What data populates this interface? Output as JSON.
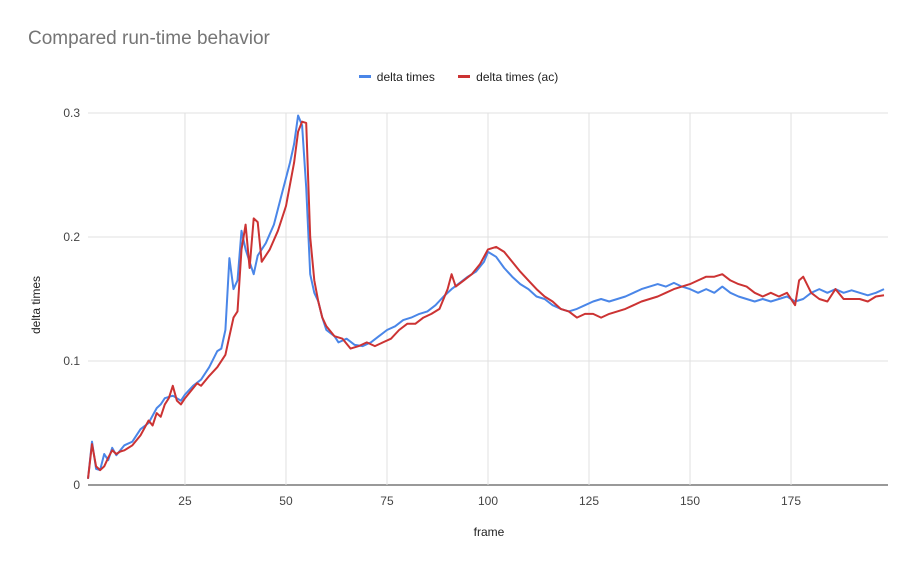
{
  "chart_data": {
    "type": "line",
    "title": "Compared run-time behavior",
    "xlabel": "frame",
    "ylabel": "delta times",
    "xlim": [
      1,
      199
    ],
    "ylim": [
      0,
      0.3
    ],
    "x_ticks": [
      25,
      50,
      75,
      100,
      125,
      150,
      175
    ],
    "y_ticks": [
      0,
      0.1,
      0.2,
      0.3
    ],
    "x_tick_labels": [
      "25",
      "50",
      "75",
      "100",
      "125",
      "150",
      "175"
    ],
    "y_tick_labels": [
      "0",
      "0.1",
      "0.2",
      "0.3"
    ],
    "grid": true,
    "legend_position": "top",
    "series": [
      {
        "name": "delta times",
        "color": "#4a86e8",
        "points": [
          [
            1,
            0.005
          ],
          [
            2,
            0.035
          ],
          [
            3,
            0.013
          ],
          [
            4,
            0.012
          ],
          [
            5,
            0.025
          ],
          [
            6,
            0.02
          ],
          [
            7,
            0.03
          ],
          [
            8,
            0.024
          ],
          [
            9,
            0.028
          ],
          [
            10,
            0.032
          ],
          [
            12,
            0.035
          ],
          [
            14,
            0.045
          ],
          [
            16,
            0.05
          ],
          [
            18,
            0.062
          ],
          [
            19,
            0.065
          ],
          [
            20,
            0.07
          ],
          [
            22,
            0.072
          ],
          [
            24,
            0.068
          ],
          [
            25,
            0.073
          ],
          [
            27,
            0.08
          ],
          [
            29,
            0.085
          ],
          [
            31,
            0.095
          ],
          [
            33,
            0.108
          ],
          [
            34,
            0.11
          ],
          [
            35,
            0.125
          ],
          [
            36,
            0.183
          ],
          [
            37,
            0.158
          ],
          [
            38,
            0.165
          ],
          [
            39,
            0.205
          ],
          [
            40,
            0.19
          ],
          [
            41,
            0.18
          ],
          [
            42,
            0.17
          ],
          [
            43,
            0.185
          ],
          [
            45,
            0.195
          ],
          [
            47,
            0.21
          ],
          [
            49,
            0.235
          ],
          [
            51,
            0.26
          ],
          [
            52,
            0.275
          ],
          [
            53,
            0.298
          ],
          [
            54,
            0.29
          ],
          [
            55,
            0.24
          ],
          [
            56,
            0.17
          ],
          [
            57,
            0.155
          ],
          [
            58,
            0.148
          ],
          [
            59,
            0.135
          ],
          [
            60,
            0.125
          ],
          [
            62,
            0.12
          ],
          [
            63,
            0.115
          ],
          [
            65,
            0.118
          ],
          [
            67,
            0.113
          ],
          [
            69,
            0.112
          ],
          [
            71,
            0.115
          ],
          [
            73,
            0.12
          ],
          [
            75,
            0.125
          ],
          [
            77,
            0.128
          ],
          [
            79,
            0.133
          ],
          [
            81,
            0.135
          ],
          [
            83,
            0.138
          ],
          [
            85,
            0.14
          ],
          [
            87,
            0.145
          ],
          [
            89,
            0.152
          ],
          [
            91,
            0.158
          ],
          [
            93,
            0.163
          ],
          [
            95,
            0.168
          ],
          [
            97,
            0.172
          ],
          [
            99,
            0.18
          ],
          [
            100,
            0.188
          ],
          [
            102,
            0.184
          ],
          [
            104,
            0.175
          ],
          [
            106,
            0.168
          ],
          [
            108,
            0.162
          ],
          [
            110,
            0.158
          ],
          [
            112,
            0.152
          ],
          [
            114,
            0.15
          ],
          [
            116,
            0.145
          ],
          [
            118,
            0.142
          ],
          [
            120,
            0.14
          ],
          [
            122,
            0.142
          ],
          [
            124,
            0.145
          ],
          [
            126,
            0.148
          ],
          [
            128,
            0.15
          ],
          [
            130,
            0.148
          ],
          [
            132,
            0.15
          ],
          [
            134,
            0.152
          ],
          [
            136,
            0.155
          ],
          [
            138,
            0.158
          ],
          [
            140,
            0.16
          ],
          [
            142,
            0.162
          ],
          [
            144,
            0.16
          ],
          [
            146,
            0.163
          ],
          [
            148,
            0.16
          ],
          [
            150,
            0.158
          ],
          [
            152,
            0.155
          ],
          [
            154,
            0.158
          ],
          [
            156,
            0.155
          ],
          [
            158,
            0.16
          ],
          [
            160,
            0.155
          ],
          [
            162,
            0.152
          ],
          [
            164,
            0.15
          ],
          [
            166,
            0.148
          ],
          [
            168,
            0.15
          ],
          [
            170,
            0.148
          ],
          [
            172,
            0.15
          ],
          [
            174,
            0.152
          ],
          [
            176,
            0.148
          ],
          [
            178,
            0.15
          ],
          [
            180,
            0.155
          ],
          [
            182,
            0.158
          ],
          [
            184,
            0.155
          ],
          [
            186,
            0.158
          ],
          [
            188,
            0.155
          ],
          [
            190,
            0.157
          ],
          [
            192,
            0.155
          ],
          [
            194,
            0.153
          ],
          [
            196,
            0.155
          ],
          [
            198,
            0.158
          ]
        ]
      },
      {
        "name": "delta times (ac)",
        "color": "#cc3333",
        "points": [
          [
            1,
            0.005
          ],
          [
            2,
            0.033
          ],
          [
            3,
            0.015
          ],
          [
            4,
            0.012
          ],
          [
            5,
            0.015
          ],
          [
            6,
            0.022
          ],
          [
            7,
            0.028
          ],
          [
            8,
            0.025
          ],
          [
            9,
            0.027
          ],
          [
            10,
            0.028
          ],
          [
            12,
            0.032
          ],
          [
            14,
            0.04
          ],
          [
            16,
            0.052
          ],
          [
            17,
            0.048
          ],
          [
            18,
            0.058
          ],
          [
            19,
            0.055
          ],
          [
            20,
            0.065
          ],
          [
            21,
            0.07
          ],
          [
            22,
            0.08
          ],
          [
            23,
            0.068
          ],
          [
            24,
            0.065
          ],
          [
            25,
            0.07
          ],
          [
            27,
            0.078
          ],
          [
            28,
            0.082
          ],
          [
            29,
            0.08
          ],
          [
            31,
            0.088
          ],
          [
            33,
            0.095
          ],
          [
            35,
            0.105
          ],
          [
            36,
            0.12
          ],
          [
            37,
            0.135
          ],
          [
            38,
            0.14
          ],
          [
            39,
            0.19
          ],
          [
            40,
            0.21
          ],
          [
            41,
            0.175
          ],
          [
            42,
            0.215
          ],
          [
            43,
            0.212
          ],
          [
            44,
            0.18
          ],
          [
            46,
            0.19
          ],
          [
            48,
            0.205
          ],
          [
            50,
            0.225
          ],
          [
            52,
            0.26
          ],
          [
            53,
            0.285
          ],
          [
            54,
            0.293
          ],
          [
            55,
            0.292
          ],
          [
            56,
            0.2
          ],
          [
            57,
            0.165
          ],
          [
            58,
            0.148
          ],
          [
            59,
            0.135
          ],
          [
            60,
            0.128
          ],
          [
            62,
            0.12
          ],
          [
            64,
            0.118
          ],
          [
            66,
            0.11
          ],
          [
            68,
            0.112
          ],
          [
            70,
            0.115
          ],
          [
            72,
            0.112
          ],
          [
            74,
            0.115
          ],
          [
            76,
            0.118
          ],
          [
            78,
            0.125
          ],
          [
            80,
            0.13
          ],
          [
            82,
            0.13
          ],
          [
            84,
            0.135
          ],
          [
            86,
            0.138
          ],
          [
            88,
            0.142
          ],
          [
            90,
            0.158
          ],
          [
            91,
            0.17
          ],
          [
            92,
            0.16
          ],
          [
            94,
            0.165
          ],
          [
            96,
            0.17
          ],
          [
            98,
            0.178
          ],
          [
            100,
            0.19
          ],
          [
            102,
            0.192
          ],
          [
            104,
            0.188
          ],
          [
            106,
            0.18
          ],
          [
            108,
            0.172
          ],
          [
            110,
            0.165
          ],
          [
            112,
            0.158
          ],
          [
            114,
            0.152
          ],
          [
            116,
            0.148
          ],
          [
            118,
            0.142
          ],
          [
            120,
            0.14
          ],
          [
            122,
            0.135
          ],
          [
            124,
            0.138
          ],
          [
            126,
            0.138
          ],
          [
            128,
            0.135
          ],
          [
            130,
            0.138
          ],
          [
            132,
            0.14
          ],
          [
            134,
            0.142
          ],
          [
            136,
            0.145
          ],
          [
            138,
            0.148
          ],
          [
            140,
            0.15
          ],
          [
            142,
            0.152
          ],
          [
            144,
            0.155
          ],
          [
            146,
            0.158
          ],
          [
            148,
            0.16
          ],
          [
            150,
            0.162
          ],
          [
            152,
            0.165
          ],
          [
            154,
            0.168
          ],
          [
            156,
            0.168
          ],
          [
            158,
            0.17
          ],
          [
            160,
            0.165
          ],
          [
            162,
            0.162
          ],
          [
            164,
            0.16
          ],
          [
            166,
            0.155
          ],
          [
            168,
            0.152
          ],
          [
            170,
            0.155
          ],
          [
            172,
            0.152
          ],
          [
            174,
            0.155
          ],
          [
            176,
            0.145
          ],
          [
            177,
            0.165
          ],
          [
            178,
            0.168
          ],
          [
            180,
            0.155
          ],
          [
            182,
            0.15
          ],
          [
            184,
            0.148
          ],
          [
            186,
            0.158
          ],
          [
            188,
            0.15
          ],
          [
            190,
            0.15
          ],
          [
            192,
            0.15
          ],
          [
            194,
            0.148
          ],
          [
            196,
            0.152
          ],
          [
            198,
            0.153
          ]
        ]
      }
    ]
  }
}
